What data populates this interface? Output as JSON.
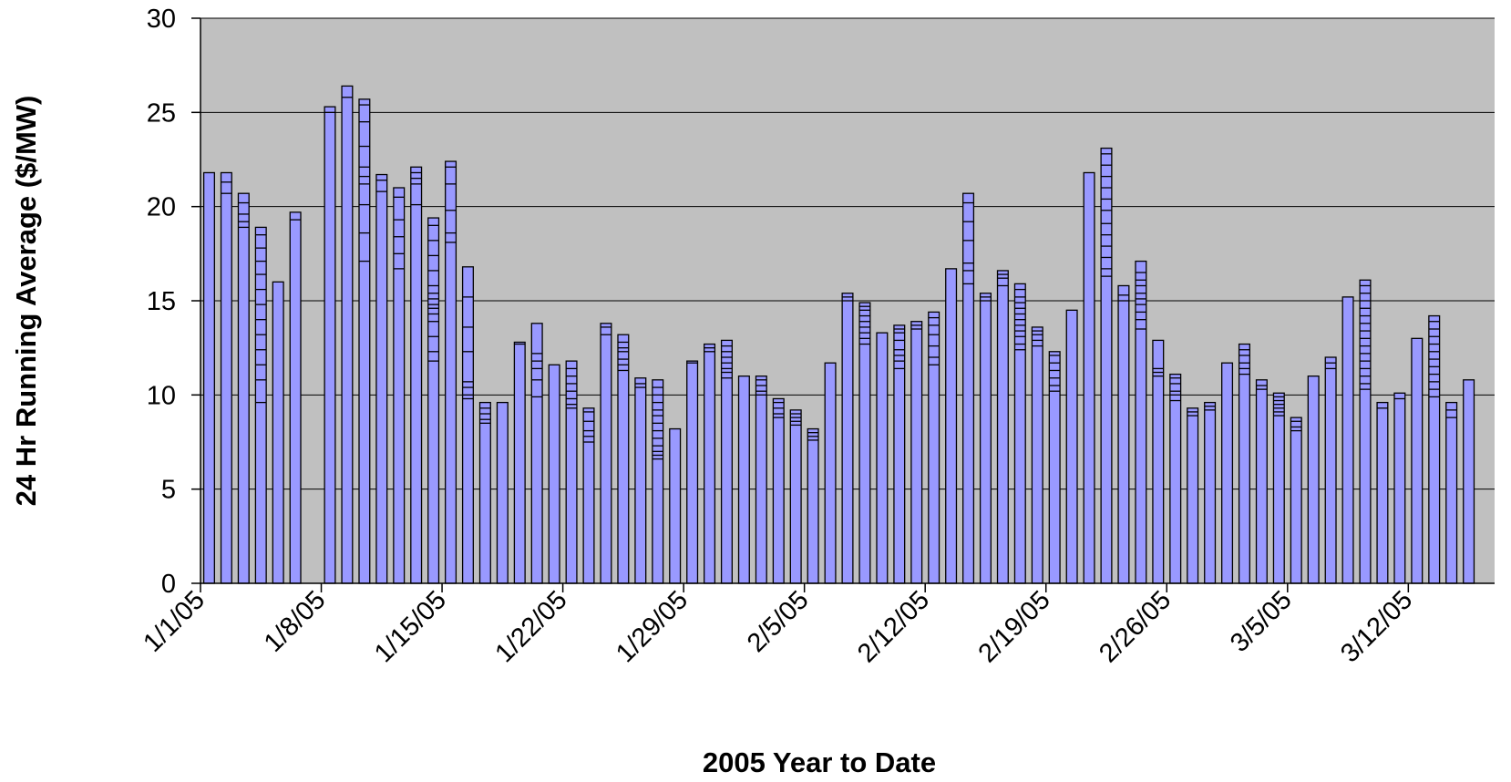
{
  "chart_data": {
    "type": "bar",
    "xlabel": "2005 Year to Date",
    "ylabel": "24 Hr Running Average ($/MW)",
    "ylim": [
      0,
      30
    ],
    "yticks": [
      "0",
      "5",
      "10",
      "15",
      "20",
      "25",
      "30"
    ],
    "xlim": [
      "1/1/05",
      "3/17/05"
    ],
    "xticks": [
      "1/1/05",
      "1/8/05",
      "1/15/05",
      "1/22/05",
      "1/29/05",
      "2/5/05",
      "2/12/05",
      "2/19/05",
      "2/26/05",
      "3/5/05",
      "3/12/05"
    ],
    "grid": true,
    "legend": "none",
    "colors": {
      "plot_background": "#c0c0c0",
      "bar_fill": "#9999ff",
      "bar_edge": "#000000",
      "gridline": "#000000"
    },
    "bars": [
      {
        "date": "1/2/05",
        "value": 21.8,
        "marks": []
      },
      {
        "date": "1/3/05",
        "value": 21.8,
        "marks": [
          21.3,
          20.7
        ]
      },
      {
        "date": "1/4/05",
        "value": 20.7,
        "marks": [
          20.2,
          19.6,
          19.2,
          18.9
        ]
      },
      {
        "date": "1/5/05",
        "value": 18.9,
        "marks": [
          18.5,
          17.8,
          17.1,
          16.4,
          15.6,
          14.8,
          14.0,
          13.2,
          12.4,
          11.6,
          10.8,
          9.6
        ]
      },
      {
        "date": "1/6/05",
        "value": 16.0,
        "marks": []
      },
      {
        "date": "1/7/05",
        "value": 19.7,
        "marks": [
          19.3
        ]
      },
      {
        "date": "1/8/05",
        "value": 0,
        "marks": []
      },
      {
        "date": "1/9/05",
        "value": 25.3,
        "marks": [
          25.0
        ]
      },
      {
        "date": "1/10/05",
        "value": 26.4,
        "marks": [
          25.8
        ]
      },
      {
        "date": "1/11/05",
        "value": 25.7,
        "marks": [
          25.4,
          24.5,
          23.2,
          22.1,
          21.6,
          21.2,
          20.1,
          18.6,
          17.1
        ]
      },
      {
        "date": "1/12/05",
        "value": 21.7,
        "marks": [
          21.4,
          20.8
        ]
      },
      {
        "date": "1/13/05",
        "value": 21.0,
        "marks": [
          20.5,
          19.3,
          18.4,
          17.5,
          16.7
        ]
      },
      {
        "date": "1/14/05",
        "value": 22.1,
        "marks": [
          21.8,
          21.5,
          21.2,
          20.1
        ]
      },
      {
        "date": "1/15/05",
        "value": 19.4,
        "marks": [
          19.0,
          18.2,
          17.4,
          16.6,
          15.8,
          15.4,
          15.1,
          14.8,
          14.6,
          14.3,
          13.9,
          13.1,
          12.3,
          11.8
        ]
      },
      {
        "date": "1/16/05",
        "value": 22.4,
        "marks": [
          22.1,
          21.2,
          19.8,
          18.6,
          18.1
        ]
      },
      {
        "date": "1/17/05",
        "value": 16.8,
        "marks": [
          15.2,
          13.6,
          12.3,
          10.7,
          10.4,
          10.0,
          9.8
        ]
      },
      {
        "date": "1/18/05",
        "value": 9.6,
        "marks": [
          9.3,
          9.0,
          8.7,
          8.5
        ]
      },
      {
        "date": "1/19/05",
        "value": 9.6,
        "marks": []
      },
      {
        "date": "1/20/05",
        "value": 12.8,
        "marks": [
          12.7
        ]
      },
      {
        "date": "1/21/05",
        "value": 13.8,
        "marks": [
          12.2,
          11.8,
          11.4,
          10.8,
          9.9
        ]
      },
      {
        "date": "1/22/05",
        "value": 11.6,
        "marks": []
      },
      {
        "date": "1/23/05",
        "value": 11.8,
        "marks": [
          11.4,
          11.0,
          10.6,
          10.2,
          9.8,
          9.5,
          9.3
        ]
      },
      {
        "date": "1/24/05",
        "value": 9.3,
        "marks": [
          9.1,
          8.6,
          8.1,
          7.8,
          7.5
        ]
      },
      {
        "date": "1/25/05",
        "value": 13.8,
        "marks": [
          13.6,
          13.2
        ]
      },
      {
        "date": "1/26/05",
        "value": 13.2,
        "marks": [
          12.8,
          12.5,
          12.3,
          11.9,
          11.6,
          11.3
        ]
      },
      {
        "date": "1/27/05",
        "value": 10.9,
        "marks": [
          10.6,
          10.4
        ]
      },
      {
        "date": "1/28/05",
        "value": 10.8,
        "marks": [
          10.4,
          10.0,
          9.6,
          9.2,
          8.9,
          8.5,
          8.1,
          7.7,
          7.3,
          7.0,
          6.8,
          6.6
        ]
      },
      {
        "date": "1/29/05",
        "value": 8.2,
        "marks": []
      },
      {
        "date": "1/30/05",
        "value": 11.8,
        "marks": [
          11.7
        ]
      },
      {
        "date": "1/31/05",
        "value": 12.7,
        "marks": [
          12.5,
          12.3
        ]
      },
      {
        "date": "2/1/05",
        "value": 12.9,
        "marks": [
          12.6,
          12.3,
          12.0,
          11.7,
          11.4,
          11.2,
          10.9
        ]
      },
      {
        "date": "2/2/05",
        "value": 11.0,
        "marks": []
      },
      {
        "date": "2/3/05",
        "value": 11.0,
        "marks": [
          10.8,
          10.5,
          10.2,
          10.0
        ]
      },
      {
        "date": "2/4/05",
        "value": 9.8,
        "marks": [
          9.6,
          9.3,
          9.0,
          8.8
        ]
      },
      {
        "date": "2/5/05",
        "value": 9.2,
        "marks": [
          9.0,
          8.8,
          8.6,
          8.4
        ]
      },
      {
        "date": "2/6/05",
        "value": 8.2,
        "marks": [
          8.0,
          7.8,
          7.6
        ]
      },
      {
        "date": "2/7/05",
        "value": 11.7,
        "marks": []
      },
      {
        "date": "2/8/05",
        "value": 15.4,
        "marks": [
          15.2,
          15.0
        ]
      },
      {
        "date": "2/9/05",
        "value": 14.9,
        "marks": [
          14.7,
          14.5,
          14.2,
          13.9,
          13.6,
          13.3,
          13.0,
          12.7
        ]
      },
      {
        "date": "2/10/05",
        "value": 13.3,
        "marks": []
      },
      {
        "date": "2/11/05",
        "value": 13.7,
        "marks": [
          13.5,
          13.3,
          12.9,
          12.4,
          12.1,
          11.8,
          11.4
        ]
      },
      {
        "date": "2/12/05",
        "value": 13.9,
        "marks": [
          13.7,
          13.5
        ]
      },
      {
        "date": "2/13/05",
        "value": 14.4,
        "marks": [
          14.1,
          13.7,
          13.2,
          12.6,
          12.0,
          11.6
        ]
      },
      {
        "date": "2/14/05",
        "value": 16.7,
        "marks": []
      },
      {
        "date": "2/15/05",
        "value": 20.7,
        "marks": [
          20.2,
          19.2,
          18.2,
          17.0,
          16.6,
          15.9
        ]
      },
      {
        "date": "2/16/05",
        "value": 15.4,
        "marks": [
          15.2,
          15.0
        ]
      },
      {
        "date": "2/17/05",
        "value": 16.6,
        "marks": [
          16.4,
          16.2,
          15.8
        ]
      },
      {
        "date": "2/18/05",
        "value": 15.9,
        "marks": [
          15.6,
          15.2,
          14.9,
          14.6,
          14.3,
          14.0,
          13.7,
          13.4,
          13.1,
          12.7,
          12.4
        ]
      },
      {
        "date": "2/19/05",
        "value": 13.6,
        "marks": [
          13.4,
          13.2,
          12.9,
          12.6
        ]
      },
      {
        "date": "2/20/05",
        "value": 12.3,
        "marks": [
          12.1,
          11.7,
          11.3,
          10.9,
          10.5,
          10.2
        ]
      },
      {
        "date": "2/21/05",
        "value": 14.5,
        "marks": []
      },
      {
        "date": "2/22/05",
        "value": 21.8,
        "marks": []
      },
      {
        "date": "2/23/05",
        "value": 23.1,
        "marks": [
          22.8,
          22.2,
          21.6,
          21.0,
          20.4,
          19.8,
          19.1,
          18.5,
          17.9,
          17.3,
          16.7,
          16.3
        ]
      },
      {
        "date": "2/24/05",
        "value": 15.8,
        "marks": [
          15.3,
          15.0
        ]
      },
      {
        "date": "2/25/05",
        "value": 17.1,
        "marks": [
          16.5,
          16.1,
          15.8,
          15.4,
          15.1,
          14.8,
          14.4,
          14.0,
          13.5
        ]
      },
      {
        "date": "2/26/05",
        "value": 12.9,
        "marks": [
          11.4,
          11.2,
          11.0
        ]
      },
      {
        "date": "2/27/05",
        "value": 11.1,
        "marks": [
          10.9,
          10.6,
          10.2,
          10.0,
          9.7
        ]
      },
      {
        "date": "2/28/05",
        "value": 9.3,
        "marks": [
          9.1,
          8.9
        ]
      },
      {
        "date": "3/1/05",
        "value": 9.6,
        "marks": [
          9.4,
          9.2
        ]
      },
      {
        "date": "3/2/05",
        "value": 11.7,
        "marks": []
      },
      {
        "date": "3/3/05",
        "value": 12.7,
        "marks": [
          12.4,
          12.1,
          11.7,
          11.4,
          11.1
        ]
      },
      {
        "date": "3/4/05",
        "value": 10.8,
        "marks": [
          10.5,
          10.3
        ]
      },
      {
        "date": "3/5/05",
        "value": 10.1,
        "marks": [
          9.9,
          9.7,
          9.5,
          9.3,
          9.1,
          8.9
        ]
      },
      {
        "date": "3/6/05",
        "value": 8.8,
        "marks": [
          8.6,
          8.3,
          8.1
        ]
      },
      {
        "date": "3/7/05",
        "value": 11.0,
        "marks": []
      },
      {
        "date": "3/8/05",
        "value": 12.0,
        "marks": [
          11.7,
          11.4
        ]
      },
      {
        "date": "3/9/05",
        "value": 15.2,
        "marks": []
      },
      {
        "date": "3/10/05",
        "value": 16.1,
        "marks": [
          15.8,
          15.4,
          15.0,
          14.6,
          14.2,
          13.8,
          13.4,
          13.0,
          12.6,
          12.2,
          11.8,
          11.4,
          11.0,
          10.6,
          10.3
        ]
      },
      {
        "date": "3/11/05",
        "value": 9.6,
        "marks": [
          9.3
        ]
      },
      {
        "date": "3/12/05",
        "value": 10.1,
        "marks": [
          9.8
        ]
      },
      {
        "date": "3/13/05",
        "value": 13.0,
        "marks": []
      },
      {
        "date": "3/14/05",
        "value": 14.2,
        "marks": [
          13.9,
          13.5,
          13.1,
          12.7,
          12.3,
          11.9,
          11.5,
          11.1,
          10.7,
          10.3,
          9.9
        ]
      },
      {
        "date": "3/15/05",
        "value": 9.6,
        "marks": [
          9.2,
          8.8
        ]
      },
      {
        "date": "3/16/05",
        "value": 10.8,
        "marks": []
      }
    ]
  }
}
